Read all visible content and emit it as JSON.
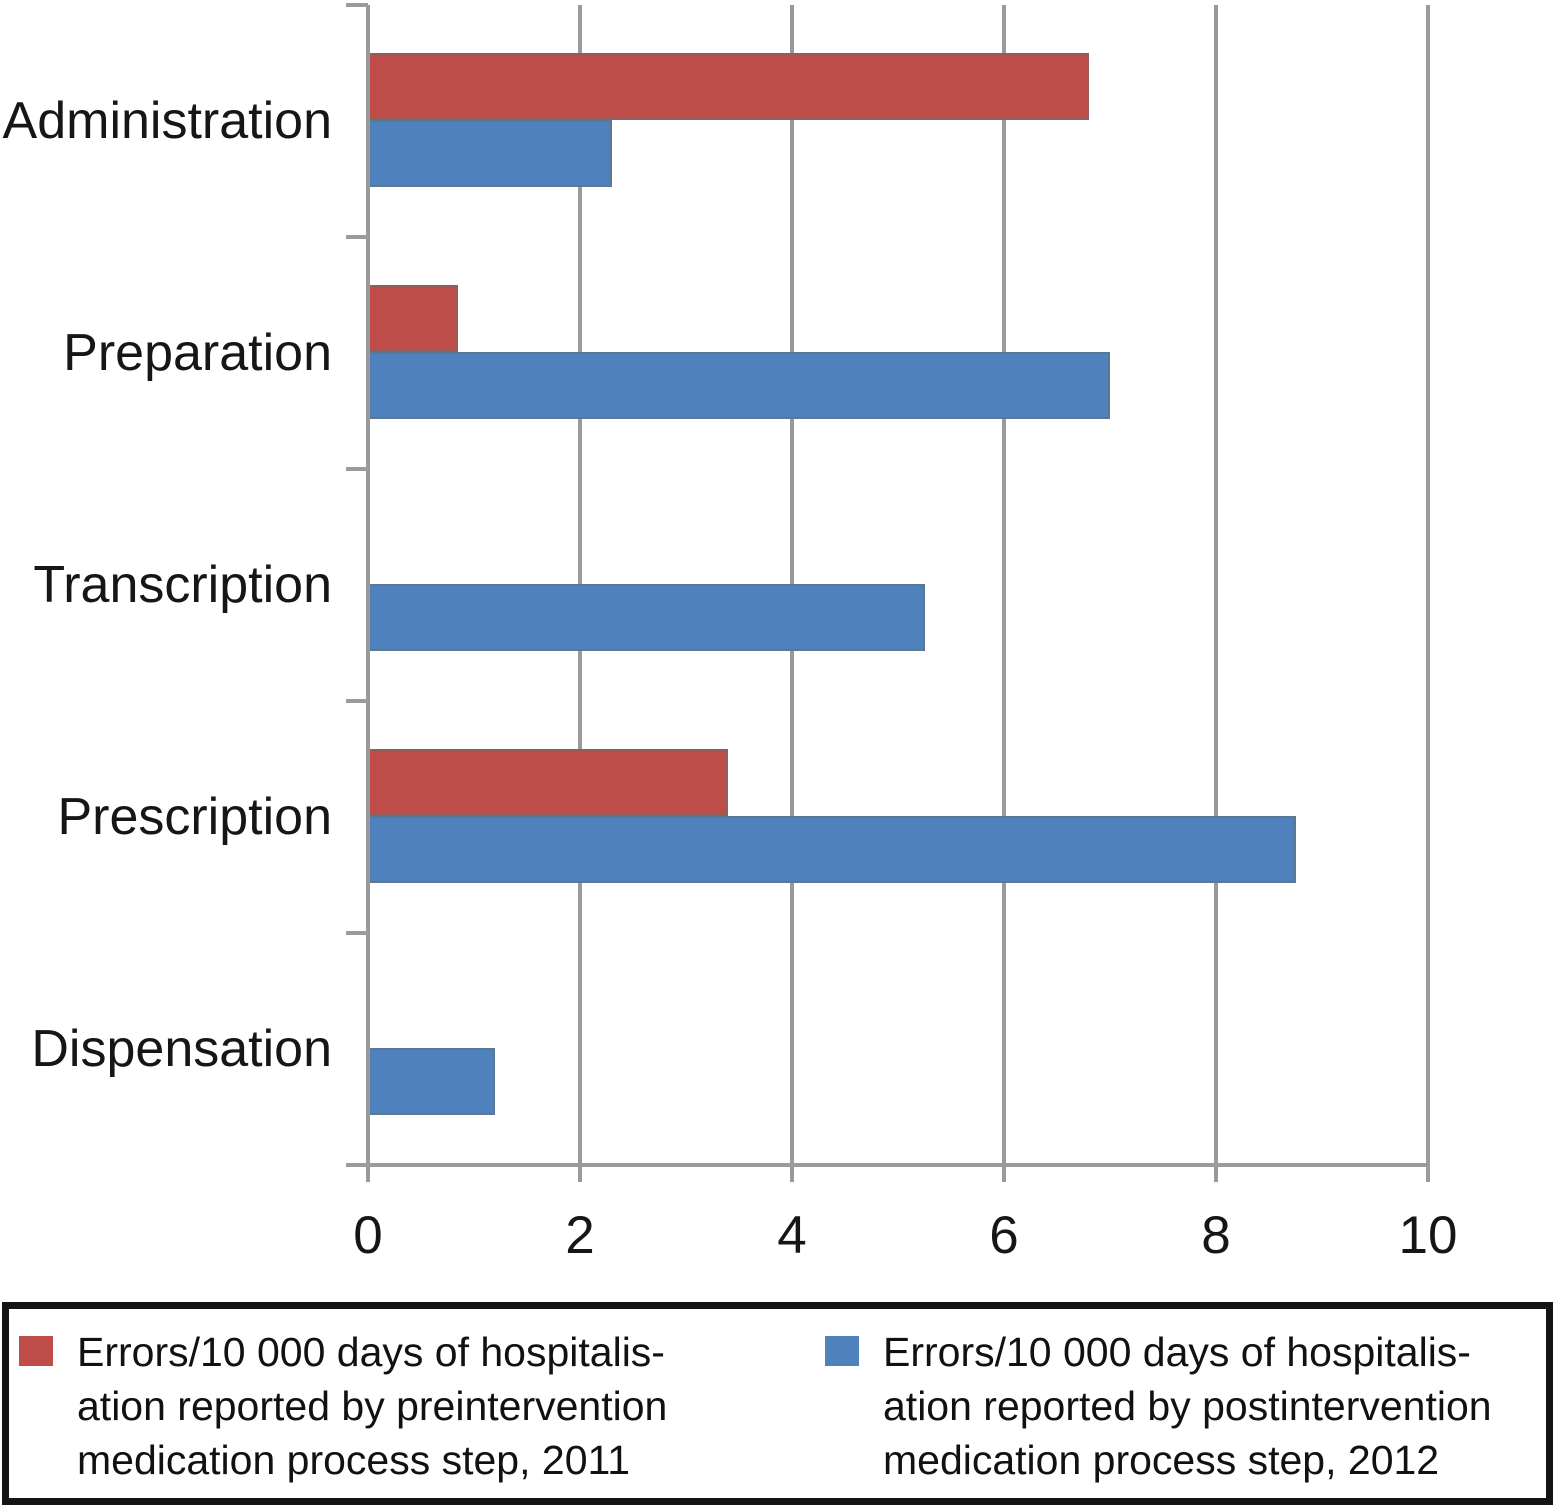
{
  "chart_data": {
    "type": "bar",
    "orientation": "horizontal",
    "title": "",
    "xlabel": "",
    "ylabel": "",
    "categories": [
      "Administration",
      "Preparation",
      "Transcription",
      "Prescription",
      "Dispensation"
    ],
    "series": [
      {
        "name": "Errors/10 000 days of hospitalisation reported by preintervention medication process step, 2011",
        "color": "#be4c48",
        "values": [
          6.8,
          0.85,
          0,
          3.4,
          0
        ]
      },
      {
        "name": "Errors/10 000 days of hospitalisation reported by postintervention medication process step, 2012",
        "color": "#4f81bd",
        "values": [
          2.3,
          7.0,
          5.25,
          8.75,
          1.2
        ]
      }
    ],
    "xlim": [
      0,
      10
    ],
    "x_ticks": [
      0,
      2,
      4,
      6,
      8,
      10
    ],
    "grid": true,
    "legend_position": "bottom"
  },
  "legend": {
    "entries": [
      {
        "color": "#be4c48",
        "lines": [
          "Errors/10 000 days of hospitalis-",
          "ation reported by preintervention",
          "medication process step, 2011"
        ]
      },
      {
        "color": "#4f81bd",
        "lines": [
          "Errors/10 000 days of hospitalis-",
          "ation reported by postintervention",
          "medication process step, 2012"
        ]
      }
    ]
  },
  "colors": {
    "series_2011": "#be4c48",
    "series_2012": "#4f81bd",
    "axis": "#9a9a9a",
    "legend_border": "#151515",
    "background": "#ffffff"
  }
}
